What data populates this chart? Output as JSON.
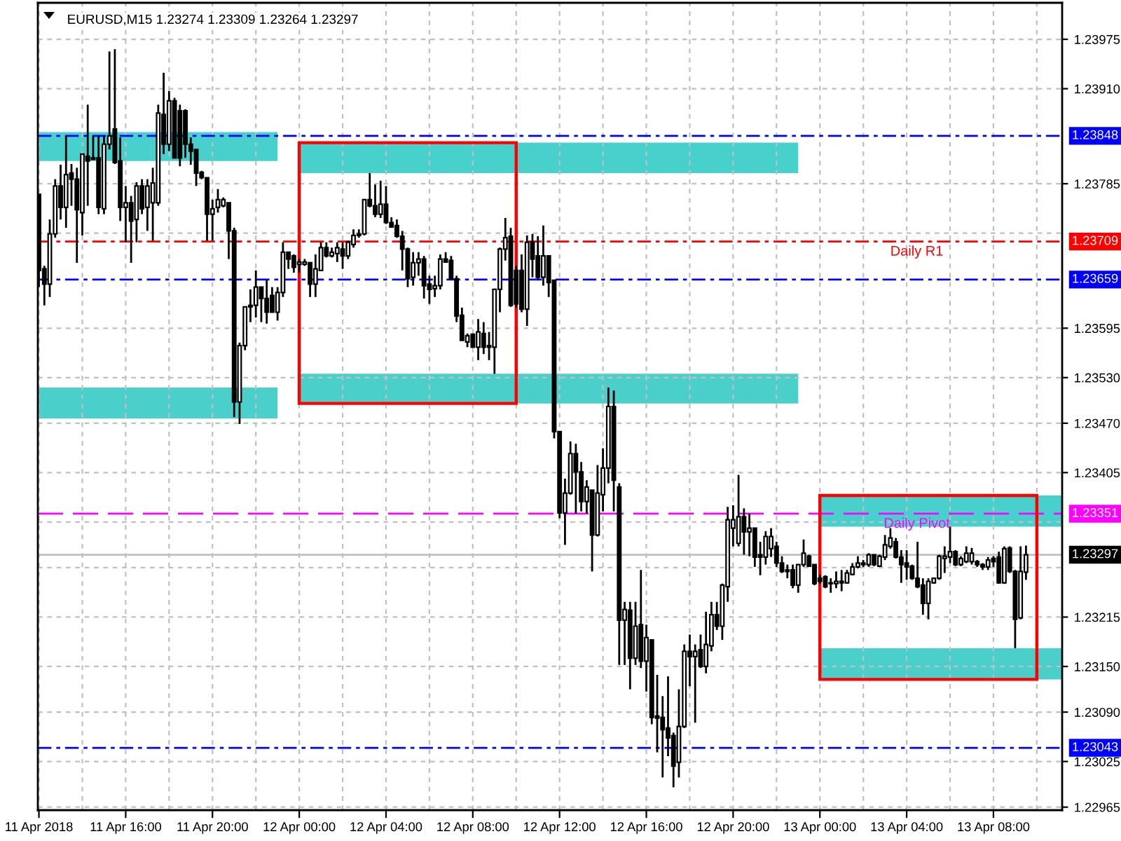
{
  "chart_data": {
    "type": "candlestick",
    "title": "EURUSD,M15 1.23274 1.23309 1.23264 1.23297",
    "x": [
      "2018-04-11T12:00",
      "2018-04-11T12:15",
      "2018-04-11T12:30",
      "2018-04-11T12:45",
      "2018-04-11T13:00",
      "2018-04-11T13:15",
      "2018-04-11T13:30",
      "2018-04-11T13:45",
      "2018-04-11T14:00",
      "2018-04-11T14:15",
      "2018-04-11T14:30",
      "2018-04-11T14:45",
      "2018-04-11T15:00",
      "2018-04-11T15:15",
      "2018-04-11T15:30",
      "2018-04-11T15:45",
      "2018-04-11T16:00",
      "2018-04-11T16:15",
      "2018-04-11T16:30",
      "2018-04-11T16:45",
      "2018-04-11T17:00",
      "2018-04-11T17:15",
      "2018-04-11T17:30",
      "2018-04-11T17:45",
      "2018-04-11T18:00",
      "2018-04-11T18:15",
      "2018-04-11T18:30",
      "2018-04-11T18:45",
      "2018-04-11T19:00",
      "2018-04-11T19:15",
      "2018-04-11T19:30",
      "2018-04-11T19:45",
      "2018-04-11T20:00",
      "2018-04-11T20:15",
      "2018-04-11T20:30",
      "2018-04-11T20:45",
      "2018-04-11T21:00",
      "2018-04-11T21:15",
      "2018-04-11T21:30",
      "2018-04-11T21:45",
      "2018-04-11T22:00",
      "2018-04-11T22:15",
      "2018-04-11T22:30",
      "2018-04-11T22:45",
      "2018-04-11T23:00",
      "2018-04-11T23:15",
      "2018-04-11T23:30",
      "2018-04-11T23:45",
      "2018-04-12T00:00",
      "2018-04-12T00:15",
      "2018-04-12T00:30",
      "2018-04-12T00:45",
      "2018-04-12T01:00",
      "2018-04-12T01:15",
      "2018-04-12T01:30",
      "2018-04-12T01:45",
      "2018-04-12T02:00",
      "2018-04-12T02:15",
      "2018-04-12T02:30",
      "2018-04-12T02:45",
      "2018-04-12T03:00",
      "2018-04-12T03:15",
      "2018-04-12T03:30",
      "2018-04-12T03:45",
      "2018-04-12T04:00",
      "2018-04-12T04:15",
      "2018-04-12T04:30",
      "2018-04-12T04:45",
      "2018-04-12T05:00",
      "2018-04-12T05:15",
      "2018-04-12T05:30",
      "2018-04-12T05:45",
      "2018-04-12T06:00",
      "2018-04-12T06:15",
      "2018-04-12T06:30",
      "2018-04-12T06:45",
      "2018-04-12T07:00",
      "2018-04-12T07:15",
      "2018-04-12T07:30",
      "2018-04-12T07:45",
      "2018-04-12T08:00",
      "2018-04-12T08:15",
      "2018-04-12T08:30",
      "2018-04-12T08:45",
      "2018-04-12T09:00",
      "2018-04-12T09:15",
      "2018-04-12T09:30",
      "2018-04-12T09:45",
      "2018-04-12T10:00",
      "2018-04-12T10:15",
      "2018-04-12T10:30",
      "2018-04-12T10:45",
      "2018-04-12T11:00",
      "2018-04-12T11:15",
      "2018-04-12T11:30",
      "2018-04-12T11:45",
      "2018-04-12T12:00",
      "2018-04-12T12:15",
      "2018-04-12T12:30",
      "2018-04-12T12:45",
      "2018-04-12T13:00",
      "2018-04-12T13:15",
      "2018-04-12T13:30",
      "2018-04-12T13:45",
      "2018-04-12T14:00",
      "2018-04-12T14:15",
      "2018-04-12T14:30",
      "2018-04-12T14:45",
      "2018-04-12T15:00",
      "2018-04-12T15:15",
      "2018-04-12T15:30",
      "2018-04-12T15:45",
      "2018-04-12T16:00",
      "2018-04-12T16:15",
      "2018-04-12T16:30",
      "2018-04-12T16:45",
      "2018-04-12T17:00",
      "2018-04-12T17:15",
      "2018-04-12T17:30",
      "2018-04-12T17:45",
      "2018-04-12T18:00",
      "2018-04-12T18:15",
      "2018-04-12T18:30",
      "2018-04-12T18:45",
      "2018-04-12T19:00",
      "2018-04-12T19:15",
      "2018-04-12T19:30",
      "2018-04-12T19:45",
      "2018-04-12T20:00",
      "2018-04-12T20:15",
      "2018-04-12T20:30",
      "2018-04-12T20:45",
      "2018-04-12T21:00",
      "2018-04-12T21:15",
      "2018-04-12T21:30",
      "2018-04-12T21:45",
      "2018-04-12T22:00",
      "2018-04-12T22:15",
      "2018-04-12T22:30",
      "2018-04-12T22:45",
      "2018-04-12T23:00",
      "2018-04-12T23:15",
      "2018-04-12T23:30",
      "2018-04-12T23:45",
      "2018-04-13T00:00",
      "2018-04-13T00:15",
      "2018-04-13T00:30",
      "2018-04-13T00:45",
      "2018-04-13T01:00",
      "2018-04-13T01:15",
      "2018-04-13T01:30",
      "2018-04-13T01:45",
      "2018-04-13T02:00",
      "2018-04-13T02:15",
      "2018-04-13T02:30",
      "2018-04-13T02:45",
      "2018-04-13T03:00",
      "2018-04-13T03:15",
      "2018-04-13T03:30",
      "2018-04-13T03:45",
      "2018-04-13T04:00",
      "2018-04-13T04:15",
      "2018-04-13T04:30",
      "2018-04-13T04:45",
      "2018-04-13T05:00",
      "2018-04-13T05:15",
      "2018-04-13T05:30",
      "2018-04-13T05:45",
      "2018-04-13T06:00",
      "2018-04-13T06:15",
      "2018-04-13T06:30",
      "2018-04-13T06:45",
      "2018-04-13T07:00",
      "2018-04-13T07:15",
      "2018-04-13T07:30",
      "2018-04-13T07:45",
      "2018-04-13T08:00",
      "2018-04-13T08:15",
      "2018-04-13T08:30",
      "2018-04-13T08:45",
      "2018-04-13T09:00",
      "2018-04-13T09:15",
      "2018-04-13T09:30"
    ],
    "ohlc": [
      [
        1.23771,
        1.23771,
        1.23649,
        1.23671
      ],
      [
        1.23673,
        1.23677,
        1.23625,
        1.23653
      ],
      [
        1.23653,
        1.23738,
        1.23636,
        1.23719
      ],
      [
        1.23719,
        1.23791,
        1.23714,
        1.23782
      ],
      [
        1.23782,
        1.2381,
        1.23738,
        1.23754
      ],
      [
        1.23754,
        1.23848,
        1.23727,
        1.23797
      ],
      [
        1.23799,
        1.23811,
        1.23756,
        1.23791
      ],
      [
        1.23791,
        1.23806,
        1.23681,
        1.23751
      ],
      [
        1.23747,
        1.23824,
        1.23717,
        1.23824
      ],
      [
        1.23821,
        1.23889,
        1.23756,
        1.23815
      ],
      [
        1.23819,
        1.23848,
        1.23817,
        1.23817
      ],
      [
        1.23819,
        1.23848,
        1.23745,
        1.23754
      ],
      [
        1.23752,
        1.23848,
        1.23745,
        1.23837
      ],
      [
        1.23837,
        1.23959,
        1.2383,
        1.23848
      ],
      [
        1.23857,
        1.23962,
        1.23811,
        1.23813
      ],
      [
        1.23815,
        1.23846,
        1.23736,
        1.23754
      ],
      [
        1.23754,
        1.23782,
        1.23708,
        1.2376
      ],
      [
        1.2376,
        1.23769,
        1.23681,
        1.23736
      ],
      [
        1.23738,
        1.23787,
        1.23708,
        1.23782
      ],
      [
        1.23782,
        1.23791,
        1.23745,
        1.23752
      ],
      [
        1.23754,
        1.23791,
        1.23723,
        1.23782
      ],
      [
        1.2376,
        1.23806,
        1.2371,
        1.23786
      ],
      [
        1.2376,
        1.23889,
        1.23756,
        1.23878
      ],
      [
        1.23876,
        1.23931,
        1.23824,
        1.23837
      ],
      [
        1.23837,
        1.23907,
        1.23828,
        1.23894
      ],
      [
        1.23894,
        1.23898,
        1.23819,
        1.23819
      ],
      [
        1.23881,
        1.23889,
        1.23808,
        1.23819
      ],
      [
        1.23881,
        1.23883,
        1.23819,
        1.23837
      ],
      [
        1.23837,
        1.23846,
        1.2381,
        1.23828
      ],
      [
        1.2383,
        1.2383,
        1.23782,
        1.23799
      ],
      [
        1.238,
        1.23802,
        1.23791,
        1.23793
      ],
      [
        1.23793,
        1.23793,
        1.2371,
        1.23745
      ],
      [
        1.23745,
        1.23764,
        1.2371,
        1.23752
      ],
      [
        1.23754,
        1.23778,
        1.23747,
        1.23764
      ],
      [
        1.23756,
        1.23767,
        1.23754,
        1.23764
      ],
      [
        1.2376,
        1.2376,
        1.23686,
        1.23723
      ],
      [
        1.23723,
        1.23727,
        1.23478,
        1.23498
      ],
      [
        1.23498,
        1.23576,
        1.23469,
        1.23572
      ],
      [
        1.23572,
        1.23623,
        1.23566,
        1.23623
      ],
      [
        1.23623,
        1.23646,
        1.23603,
        1.23625
      ],
      [
        1.23625,
        1.23671,
        1.23609,
        1.23649
      ],
      [
        1.23649,
        1.23649,
        1.23603,
        1.23634
      ],
      [
        1.23634,
        1.23658,
        1.23601,
        1.23616
      ],
      [
        1.23638,
        1.23649,
        1.23616,
        1.23616
      ],
      [
        1.23616,
        1.23649,
        1.23605,
        1.23642
      ],
      [
        1.23642,
        1.23708,
        1.23636,
        1.23695
      ],
      [
        1.23695,
        1.23695,
        1.23673,
        1.23686
      ],
      [
        1.2369,
        1.23692,
        1.23668,
        1.23675
      ],
      [
        1.23679,
        1.23686,
        1.23668,
        1.23682
      ],
      [
        1.23679,
        1.23686,
        1.23677,
        1.23682
      ],
      [
        1.23681,
        1.23682,
        1.23636,
        1.23653
      ],
      [
        1.23653,
        1.23692,
        1.23636,
        1.23673
      ],
      [
        1.23671,
        1.23708,
        1.23671,
        1.23701
      ],
      [
        1.23701,
        1.23708,
        1.23688,
        1.2369
      ],
      [
        1.2369,
        1.23701,
        1.23688,
        1.23695
      ],
      [
        1.23693,
        1.23708,
        1.23682,
        1.23701
      ],
      [
        1.23699,
        1.23708,
        1.23673,
        1.2369
      ],
      [
        1.2369,
        1.2371,
        1.23686,
        1.23708
      ],
      [
        1.23705,
        1.23725,
        1.23701,
        1.23717
      ],
      [
        1.23717,
        1.23725,
        1.23714,
        1.23719
      ],
      [
        1.23719,
        1.23764,
        1.23717,
        1.23764
      ],
      [
        1.23764,
        1.23799,
        1.23754,
        1.23756
      ],
      [
        1.23756,
        1.23784,
        1.23741,
        1.23745
      ],
      [
        1.23745,
        1.23789,
        1.2374,
        1.23758
      ],
      [
        1.23758,
        1.23782,
        1.23732,
        1.23734
      ],
      [
        1.23734,
        1.23741,
        1.23727,
        1.23728
      ],
      [
        1.2373,
        1.23738,
        1.23714,
        1.23716
      ],
      [
        1.23716,
        1.23723,
        1.23671,
        1.23699
      ],
      [
        1.23699,
        1.23701,
        1.23649,
        1.2366
      ],
      [
        1.23662,
        1.23695,
        1.23651,
        1.23681
      ],
      [
        1.23681,
        1.23695,
        1.23664,
        1.23686
      ],
      [
        1.23686,
        1.2369,
        1.23634,
        1.23651
      ],
      [
        1.23653,
        1.23664,
        1.23627,
        1.23646
      ],
      [
        1.23647,
        1.23664,
        1.23636,
        1.23651
      ],
      [
        1.23651,
        1.23692,
        1.23646,
        1.23686
      ],
      [
        1.23686,
        1.23695,
        1.23682,
        1.23682
      ],
      [
        1.23684,
        1.2369,
        1.23658,
        1.2366
      ],
      [
        1.2366,
        1.23664,
        1.23603,
        1.23611
      ],
      [
        1.23612,
        1.23622,
        1.23579,
        1.23579
      ],
      [
        1.23577,
        1.23588,
        1.2357,
        1.23585
      ],
      [
        1.23587,
        1.23588,
        1.2357,
        1.2357
      ],
      [
        1.2357,
        1.23607,
        1.23553,
        1.2359
      ],
      [
        1.23588,
        1.23603,
        1.23561,
        1.2357
      ],
      [
        1.23572,
        1.2359,
        1.23553,
        1.2357
      ],
      [
        1.2357,
        1.23647,
        1.23535,
        1.23646
      ],
      [
        1.23646,
        1.23701,
        1.23616,
        1.23699
      ],
      [
        1.23699,
        1.2374,
        1.23684,
        1.23714
      ],
      [
        1.23716,
        1.23727,
        1.23623,
        1.23625
      ],
      [
        1.23671,
        1.23677,
        1.23622,
        1.23627
      ],
      [
        1.23671,
        1.23692,
        1.23616,
        1.2362
      ],
      [
        1.2362,
        1.23717,
        1.23598,
        1.23708
      ],
      [
        1.23708,
        1.23719,
        1.23662,
        1.23686
      ],
      [
        1.2369,
        1.23716,
        1.23658,
        1.23662
      ],
      [
        1.23662,
        1.2373,
        1.23651,
        1.2369
      ],
      [
        1.2369,
        1.2369,
        1.23636,
        1.23655
      ],
      [
        1.23658,
        1.23658,
        1.2345,
        1.23459
      ],
      [
        1.23459,
        1.23459,
        1.23345,
        1.23352
      ],
      [
        1.23352,
        1.23397,
        1.2331,
        1.23378
      ],
      [
        1.23378,
        1.23446,
        1.23376,
        1.2343
      ],
      [
        1.2343,
        1.23443,
        1.23351,
        1.23406
      ],
      [
        1.23406,
        1.23419,
        1.23354,
        1.23367
      ],
      [
        1.23367,
        1.23395,
        1.23351,
        1.23386
      ],
      [
        1.23382,
        1.23382,
        1.23275,
        1.23323
      ],
      [
        1.23323,
        1.23415,
        1.23321,
        1.23378
      ],
      [
        1.23376,
        1.23437,
        1.23354,
        1.23411
      ],
      [
        1.23411,
        1.23517,
        1.23391,
        1.23492
      ],
      [
        1.23492,
        1.23513,
        1.23354,
        1.23395
      ],
      [
        1.23386,
        1.23391,
        1.23152,
        1.23211
      ],
      [
        1.23211,
        1.23235,
        1.23152,
        1.23225
      ],
      [
        1.23224,
        1.23235,
        1.2312,
        1.23161
      ],
      [
        1.23161,
        1.23235,
        1.23152,
        1.23203
      ],
      [
        1.23205,
        1.23277,
        1.23148,
        1.23157
      ],
      [
        1.23157,
        1.23205,
        1.23117,
        1.23188
      ],
      [
        1.23185,
        1.23185,
        1.23074,
        1.23083
      ],
      [
        1.23085,
        1.23139,
        1.23037,
        1.23082
      ],
      [
        1.23083,
        1.23111,
        1.23004,
        1.23067
      ],
      [
        1.23069,
        1.23137,
        1.23032,
        1.23056
      ],
      [
        1.23059,
        1.23063,
        1.22991,
        1.23019
      ],
      [
        1.23024,
        1.2312,
        1.23004,
        1.23071
      ],
      [
        1.23071,
        1.23179,
        1.23069,
        1.2317
      ],
      [
        1.2317,
        1.23192,
        1.23124,
        1.23163
      ],
      [
        1.23163,
        1.23179,
        1.23076,
        1.2317
      ],
      [
        1.23172,
        1.23192,
        1.23148,
        1.2315
      ],
      [
        1.2315,
        1.23222,
        1.23141,
        1.23179
      ],
      [
        1.23177,
        1.23235,
        1.2317,
        1.23218
      ],
      [
        1.23218,
        1.23235,
        1.23198,
        1.23203
      ],
      [
        1.23203,
        1.23259,
        1.23185,
        1.23257
      ],
      [
        1.23255,
        1.2336,
        1.23235,
        1.23343
      ],
      [
        1.23332,
        1.23362,
        1.23308,
        1.23343
      ],
      [
        1.23312,
        1.23402,
        1.23308,
        1.23347
      ],
      [
        1.23347,
        1.23358,
        1.23297,
        1.23327
      ],
      [
        1.23327,
        1.23351,
        1.23295,
        1.23332
      ],
      [
        1.23332,
        1.23332,
        1.23281,
        1.23294
      ],
      [
        1.23297,
        1.23314,
        1.2327,
        1.23294
      ],
      [
        1.23294,
        1.23328,
        1.23284,
        1.23321
      ],
      [
        1.23305,
        1.23332,
        1.23294,
        1.23321
      ],
      [
        1.23308,
        1.23314,
        1.23281,
        1.23286
      ],
      [
        1.23286,
        1.23295,
        1.23273,
        1.23275
      ],
      [
        1.23277,
        1.23284,
        1.23266,
        1.23275
      ],
      [
        1.23277,
        1.23284,
        1.23253,
        1.23257
      ],
      [
        1.23257,
        1.23284,
        1.23247,
        1.23284
      ],
      [
        1.23284,
        1.23317,
        1.23281,
        1.23299
      ],
      [
        1.23295,
        1.23297,
        1.23281,
        1.23282
      ],
      [
        1.23284,
        1.23284,
        1.23257,
        1.23259
      ],
      [
        1.23266,
        1.23271,
        1.23259,
        1.23262
      ],
      [
        1.23268,
        1.2327,
        1.23253,
        1.23255
      ],
      [
        1.23259,
        1.23266,
        1.23247,
        1.2326
      ],
      [
        1.23259,
        1.23275,
        1.23253,
        1.23262
      ],
      [
        1.23262,
        1.23277,
        1.23249,
        1.2326
      ],
      [
        1.2326,
        1.23277,
        1.23259,
        1.23273
      ],
      [
        1.23271,
        1.23286,
        1.2327,
        1.23281
      ],
      [
        1.23281,
        1.23295,
        1.23279,
        1.23286
      ],
      [
        1.23286,
        1.2329,
        1.23281,
        1.23284
      ],
      [
        1.23284,
        1.23299,
        1.23281,
        1.23297
      ],
      [
        1.23297,
        1.23297,
        1.23282,
        1.23284
      ],
      [
        1.23282,
        1.23297,
        1.23281,
        1.23295
      ],
      [
        1.23294,
        1.23323,
        1.2329,
        1.2331
      ],
      [
        1.23308,
        1.23332,
        1.23305,
        1.23319
      ],
      [
        1.23314,
        1.23319,
        1.23292,
        1.23294
      ],
      [
        1.23294,
        1.23303,
        1.2326,
        1.23284
      ],
      [
        1.23286,
        1.23303,
        1.23264,
        1.23281
      ],
      [
        1.23282,
        1.23284,
        1.23264,
        1.23266
      ],
      [
        1.23266,
        1.23314,
        1.23253,
        1.23255
      ],
      [
        1.23257,
        1.23266,
        1.23218,
        1.23233
      ],
      [
        1.23233,
        1.23266,
        1.23212,
        1.23262
      ],
      [
        1.2326,
        1.23266,
        1.23259,
        1.23266
      ],
      [
        1.23266,
        1.23297,
        1.23264,
        1.23295
      ],
      [
        1.23292,
        1.23308,
        1.23273,
        1.23295
      ],
      [
        1.23294,
        1.23334,
        1.23286,
        1.23301
      ],
      [
        1.23301,
        1.23303,
        1.23282,
        1.23284
      ],
      [
        1.23284,
        1.23295,
        1.23282,
        1.23292
      ],
      [
        1.23288,
        1.23308,
        1.23286,
        1.23299
      ],
      [
        1.23288,
        1.23306,
        1.23284,
        1.23299
      ],
      [
        1.23288,
        1.2329,
        1.23281,
        1.23284
      ],
      [
        1.23284,
        1.23286,
        1.23277,
        1.23281
      ],
      [
        1.23281,
        1.23294,
        1.23277,
        1.2329
      ],
      [
        1.23292,
        1.23295,
        1.23281,
        1.23288
      ],
      [
        1.23294,
        1.23301,
        1.23259,
        1.2326
      ],
      [
        1.2326,
        1.23308,
        1.23259,
        1.23305
      ],
      [
        1.23306,
        1.23308,
        1.23273,
        1.23275
      ],
      [
        1.23275,
        1.23277,
        1.23174,
        1.23212
      ],
      [
        1.23214,
        1.23308,
        1.23212,
        1.23275
      ],
      [
        1.23274,
        1.23309,
        1.23264,
        1.23297
      ]
    ],
    "series": [
      {
        "type": "area",
        "x": [
          "2018-04-11T11:57",
          "2018-04-11T23:00"
        ],
        "values": [
          null,
          null
        ],
        "lower": [
          1.23815,
          1.23815
        ],
        "upper": [
          1.23853,
          1.23853
        ],
        "color": "#48d1cc"
      },
      {
        "type": "area",
        "x": [
          "2018-04-12T00:00",
          "2018-04-12T23:00"
        ],
        "values": [
          null,
          null
        ],
        "lower": [
          1.23799,
          1.23799
        ],
        "upper": [
          1.23839,
          1.23839
        ],
        "color": "#48d1cc"
      },
      {
        "type": "area",
        "x": [
          "2018-04-11T11:57",
          "2018-04-11T23:00"
        ],
        "values": [
          null,
          null
        ],
        "lower": [
          1.23476,
          1.23476
        ],
        "upper": [
          1.23517,
          1.23517
        ],
        "color": "#4bcfca"
      },
      {
        "type": "area",
        "x": [
          "2018-04-12T00:00",
          "2018-04-12T23:00"
        ],
        "values": [
          null,
          null
        ],
        "lower": [
          1.23496,
          1.23496
        ],
        "upper": [
          1.23535,
          1.23535
        ],
        "color": "#4bcfca"
      },
      {
        "type": "area",
        "x": [
          "2018-04-13T00:00",
          "2018-04-13T11:10"
        ],
        "values": [
          null,
          null
        ],
        "lower": [
          1.23334,
          1.23334
        ],
        "upper": [
          1.23375,
          1.23375
        ],
        "color": "#48d1cc"
      },
      {
        "type": "area",
        "x": [
          "2018-04-13T00:00",
          "2018-04-13T11:10"
        ],
        "values": [
          null,
          null
        ],
        "lower": [
          1.23133,
          1.23133
        ],
        "upper": [
          1.23174,
          1.23174
        ],
        "color": "#4bcfca"
      }
    ],
    "ref_lines": [
      {
        "axis": "y",
        "value": 1.23848,
        "label": "1.23848",
        "color": "#0000ff",
        "line_style": "dashdot"
      },
      {
        "axis": "y",
        "value": 1.23709,
        "label": "1.23709",
        "color": "#ff0000",
        "line_style": "dashdot"
      },
      {
        "axis": "y",
        "value": 1.23659,
        "label": "1.23659",
        "color": "#0000ff",
        "line_style": "dashdot"
      },
      {
        "axis": "y",
        "value": 1.23351,
        "label": "1.23351",
        "color": "#ff00ff",
        "line_style": "dashed"
      },
      {
        "axis": "y",
        "value": 1.23297,
        "label": "1.23297",
        "color": "#c0c0c0",
        "line_style": "solid"
      },
      {
        "axis": "y",
        "value": 1.23043,
        "label": "1.23043",
        "color": "#0000ff",
        "line_style": "dashdot"
      }
    ],
    "annotations": [
      {
        "text": "Daily R1",
        "x": "2018-04-13T04:28",
        "y": 1.23709
      },
      {
        "text": "Daily Pivot",
        "x": "2018-04-13T04:28",
        "y": 1.23351
      }
    ],
    "xlim": [
      "2018-04-11T11:57",
      "2018-04-13T11:10"
    ],
    "ylim": [
      1.22961,
      1.24023
    ],
    "xticks": [
      {
        "value": "2018-04-11T12:00",
        "label": "11 Apr 2018"
      },
      {
        "value": "2018-04-11T14:00",
        "label": null
      },
      {
        "value": "2018-04-11T16:00",
        "label": "11 Apr 16:00"
      },
      {
        "value": "2018-04-11T18:00",
        "label": null
      },
      {
        "value": "2018-04-11T20:00",
        "label": "11 Apr 20:00"
      },
      {
        "value": "2018-04-11T22:00",
        "label": null
      },
      {
        "value": "2018-04-12T00:00",
        "label": "12 Apr 00:00"
      },
      {
        "value": "2018-04-12T02:00",
        "label": null
      },
      {
        "value": "2018-04-12T04:00",
        "label": "12 Apr 04:00"
      },
      {
        "value": "2018-04-12T06:00",
        "label": null
      },
      {
        "value": "2018-04-12T08:00",
        "label": "12 Apr 08:00"
      },
      {
        "value": "2018-04-12T10:00",
        "label": null
      },
      {
        "value": "2018-04-12T12:00",
        "label": "12 Apr 12:00"
      },
      {
        "value": "2018-04-12T14:00",
        "label": null
      },
      {
        "value": "2018-04-12T16:00",
        "label": "12 Apr 16:00"
      },
      {
        "value": "2018-04-12T18:00",
        "label": null
      },
      {
        "value": "2018-04-12T20:00",
        "label": "12 Apr 20:00"
      },
      {
        "value": "2018-04-12T22:00",
        "label": null
      },
      {
        "value": "2018-04-13T00:00",
        "label": "13 Apr 00:00"
      },
      {
        "value": "2018-04-13T02:00",
        "label": null
      },
      {
        "value": "2018-04-13T04:00",
        "label": "13 Apr 04:00"
      },
      {
        "value": "2018-04-13T06:00",
        "label": null
      },
      {
        "value": "2018-04-13T08:00",
        "label": "13 Apr 08:00"
      },
      {
        "value": "2018-04-13T10:00",
        "label": null
      }
    ],
    "yticks": [
      1.22965,
      1.23025,
      {
        "value": 1.2309,
        "label": "1.23090"
      },
      {
        "value": 1.2315,
        "label": "1.23150"
      },
      1.23215,
      {
        "value": 1.2328,
        "label": null
      },
      {
        "value": 1.2334,
        "label": null
      },
      1.23405,
      {
        "value": 1.2347,
        "label": "1.23470"
      },
      {
        "value": 1.2353,
        "label": "1.23530"
      },
      1.23595,
      {
        "value": 1.2372,
        "label": null
      },
      1.23785,
      {
        "value": 1.2391,
        "label": "1.23910"
      },
      1.23975
    ],
    "grid": true
  }
}
